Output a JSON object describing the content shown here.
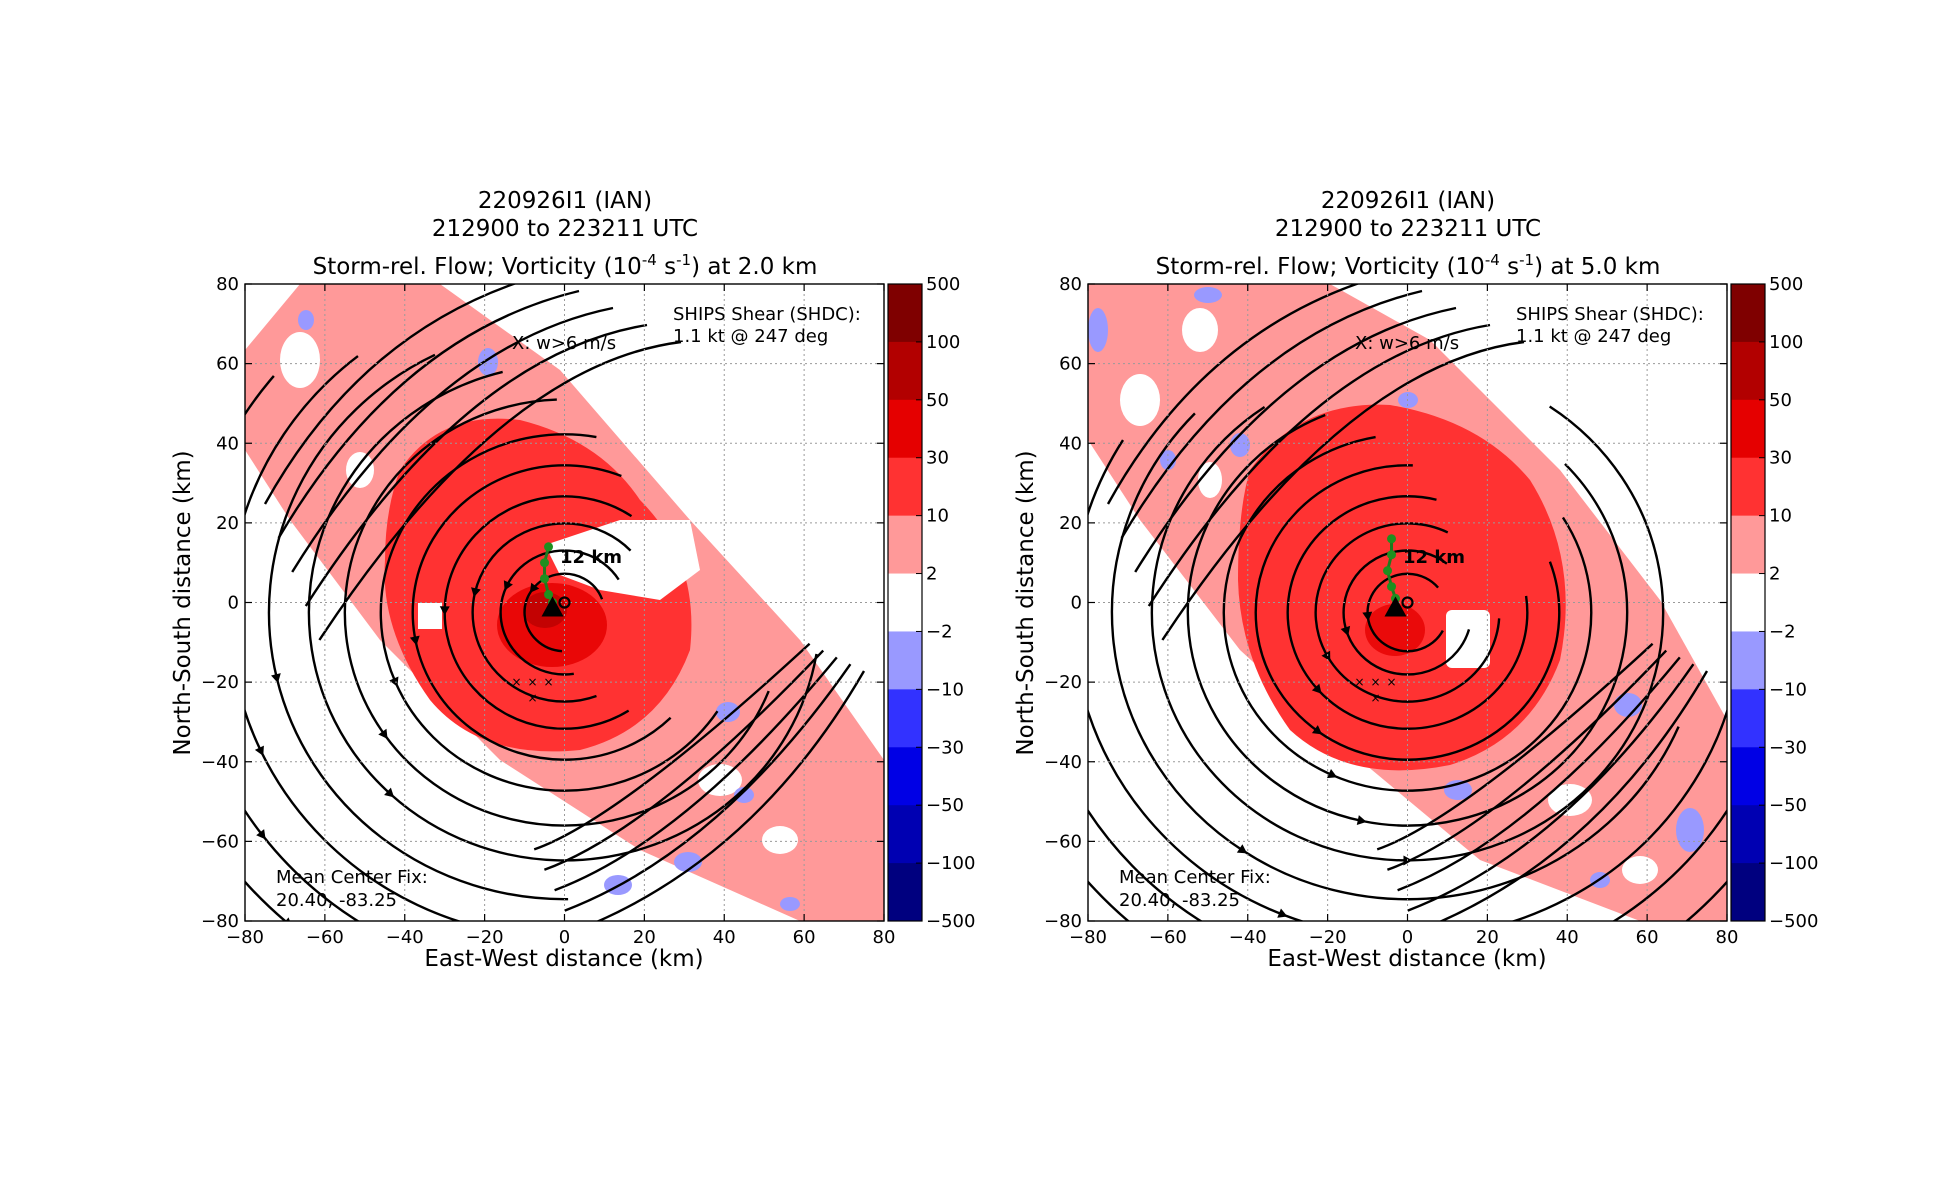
{
  "chart_data": [
    {
      "type": "heatmap",
      "title_lines": [
        "220926I1 (IAN)",
        "212900 to 223211 UTC"
      ],
      "title_line3_prefix": "Storm-rel. Flow; Vorticity (10",
      "title_line3_exp1": "-4",
      "title_line3_mid": " s",
      "title_line3_exp2": "-1",
      "title_line3_suffix": ") at 2.0 km",
      "xlabel": "East-West distance (km)",
      "ylabel": "North-South distance (km)",
      "xlim": [
        -80,
        80
      ],
      "ylim": [
        -80,
        80
      ],
      "xticks": [
        -80,
        -60,
        -40,
        -20,
        0,
        20,
        40,
        60,
        80
      ],
      "yticks": [
        -80,
        -60,
        -40,
        -20,
        0,
        20,
        40,
        60,
        80
      ],
      "grid": true,
      "annotations": {
        "shear_line1": "SHIPS Shear (SHDC):",
        "shear_line2": "1.1 kt @ 247 deg",
        "w_label": "X: w>6 m/s",
        "rmw_label": "12 km",
        "fix_line1": "Mean Center Fix:",
        "fix_line2": "20.40, -83.25"
      },
      "colorbar": {
        "levels": [
          -500,
          -100,
          -50,
          -30,
          -10,
          -2,
          2,
          10,
          30,
          50,
          100,
          500
        ],
        "tick_labels": [
          "500",
          "100",
          "50",
          "30",
          "10",
          "2",
          "−2",
          "−10",
          "−30",
          "−50",
          "−100",
          "−500"
        ],
        "colors_top_to_bottom": [
          "#7f0000",
          "#b20000",
          "#e50000",
          "#ff3232",
          "#ff9999",
          "#ffffff",
          "#9999ff",
          "#3232ff",
          "#0000e5",
          "#0000b2",
          "#00007f"
        ]
      },
      "center_track_km": [
        [
          -4,
          14
        ],
        [
          -5,
          10
        ],
        [
          -5,
          6
        ],
        [
          -4,
          2
        ],
        [
          -3,
          0
        ]
      ],
      "updraft_x_points_km": [
        [
          -12,
          -20
        ],
        [
          -8,
          -20
        ],
        [
          -4,
          -20
        ],
        [
          -8,
          -24
        ]
      ],
      "mean_center_km": [
        0,
        0
      ]
    },
    {
      "type": "heatmap",
      "title_lines": [
        "220926I1 (IAN)",
        "212900 to 223211 UTC"
      ],
      "title_line3_prefix": "Storm-rel. Flow; Vorticity (10",
      "title_line3_exp1": "-4",
      "title_line3_mid": " s",
      "title_line3_exp2": "-1",
      "title_line3_suffix": ") at 5.0 km",
      "xlabel": "East-West distance (km)",
      "ylabel": "North-South distance (km)",
      "xlim": [
        -80,
        80
      ],
      "ylim": [
        -80,
        80
      ],
      "xticks": [
        -80,
        -60,
        -40,
        -20,
        0,
        20,
        40,
        60,
        80
      ],
      "yticks": [
        -80,
        -60,
        -40,
        -20,
        0,
        20,
        40,
        60,
        80
      ],
      "grid": true,
      "annotations": {
        "shear_line1": "SHIPS Shear (SHDC):",
        "shear_line2": "1.1 kt @ 247 deg",
        "w_label": "X: w>6 m/s",
        "rmw_label": "12 km",
        "fix_line1": "Mean Center Fix:",
        "fix_line2": "20.40, -83.25"
      },
      "colorbar": {
        "levels": [
          -500,
          -100,
          -50,
          -30,
          -10,
          -2,
          2,
          10,
          30,
          50,
          100,
          500
        ],
        "tick_labels": [
          "500",
          "100",
          "50",
          "30",
          "10",
          "2",
          "−2",
          "−10",
          "−30",
          "−50",
          "−100",
          "−500"
        ],
        "colors_top_to_bottom": [
          "#7f0000",
          "#b20000",
          "#e50000",
          "#ff3232",
          "#ff9999",
          "#ffffff",
          "#9999ff",
          "#3232ff",
          "#0000e5",
          "#0000b2",
          "#00007f"
        ]
      },
      "center_track_km": [
        [
          -4,
          16
        ],
        [
          -4,
          12
        ],
        [
          -5,
          8
        ],
        [
          -4,
          4
        ],
        [
          -3,
          1
        ]
      ],
      "updraft_x_points_km": [
        [
          -12,
          -20
        ],
        [
          -8,
          -20
        ],
        [
          -4,
          -20
        ],
        [
          -8,
          -24
        ]
      ],
      "mean_center_km": [
        0,
        0
      ]
    }
  ]
}
